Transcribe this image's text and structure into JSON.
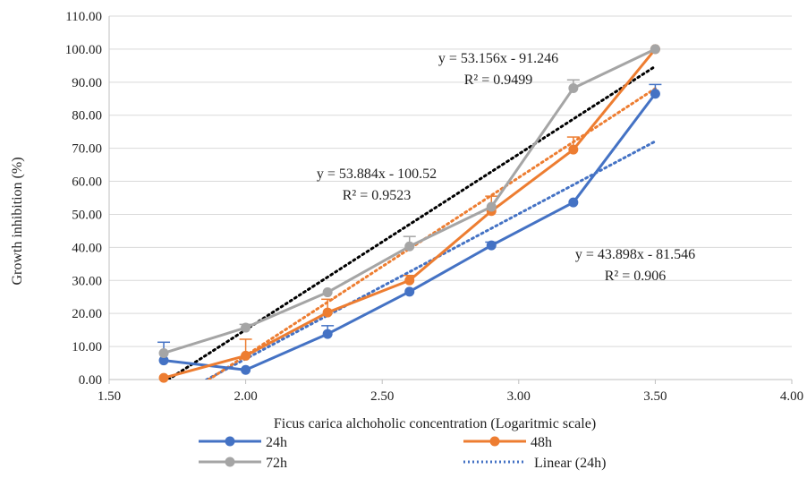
{
  "chart_data": {
    "type": "line",
    "title": "",
    "xlabel": "Ficus carica alchoholic concentration (Logaritmic scale)",
    "ylabel": "Growth inhibition (%)",
    "xlim": [
      1.5,
      4.0
    ],
    "ylim": [
      0,
      110
    ],
    "x_ticks": [
      "1.50",
      "2.00",
      "2.50",
      "3.00",
      "3.50",
      "4.00"
    ],
    "y_ticks": [
      "0.00",
      "10.00",
      "20.00",
      "30.00",
      "40.00",
      "50.00",
      "60.00",
      "70.00",
      "80.00",
      "90.00",
      "100.00",
      "110.00"
    ],
    "grid": "horizontal",
    "legend_position": "bottom",
    "x": [
      1.7,
      2.0,
      2.3,
      2.6,
      2.9,
      3.2,
      3.5
    ],
    "series": [
      {
        "name": "24h",
        "color": "#4472C4",
        "values": [
          5.8,
          2.9,
          13.8,
          26.6,
          40.6,
          53.6,
          86.5
        ],
        "error": [
          5.5,
          0,
          2.5,
          0,
          1.0,
          0,
          2.8
        ]
      },
      {
        "name": "48h",
        "color": "#ED7D31",
        "values": [
          0.5,
          7.2,
          20.3,
          30.0,
          51.0,
          69.6,
          100.0
        ],
        "error": [
          0,
          5.0,
          4.0,
          1.5,
          4.5,
          3.8,
          0
        ]
      },
      {
        "name": "72h",
        "color": "#A5A5A5",
        "values": [
          8.0,
          15.7,
          26.4,
          40.3,
          52.3,
          88.2,
          100.0
        ],
        "error": [
          0,
          1.0,
          0,
          3.0,
          0,
          2.5,
          0
        ]
      }
    ],
    "trendlines": [
      {
        "name": "Linear (24h)",
        "series": "24h",
        "color": "#4472C4",
        "slope": 43.898,
        "intercept": -81.546,
        "x_range": [
          1.7,
          3.5
        ],
        "in_legend": true
      },
      {
        "series": "48h",
        "color": "#ED7D31",
        "slope": 53.884,
        "intercept": -100.52,
        "x_range": [
          1.7,
          3.5
        ],
        "in_legend": false
      },
      {
        "series": "72h",
        "color": "#000000",
        "slope": 53.156,
        "intercept": -91.246,
        "x_range": [
          1.7,
          3.5
        ],
        "in_legend": false
      }
    ],
    "annotations": [
      {
        "id": "eq72",
        "equation": "y = 53.156x - 91.246",
        "r2": "R² = 0.9499"
      },
      {
        "id": "eq48",
        "equation": "y = 53.884x - 100.52",
        "r2": "R² = 0.9523"
      },
      {
        "id": "eq24",
        "equation": "y = 43.898x - 81.546",
        "r2": "R² = 0.906"
      }
    ],
    "legend": [
      "24h",
      "48h",
      "72h",
      "Linear (24h)"
    ]
  }
}
